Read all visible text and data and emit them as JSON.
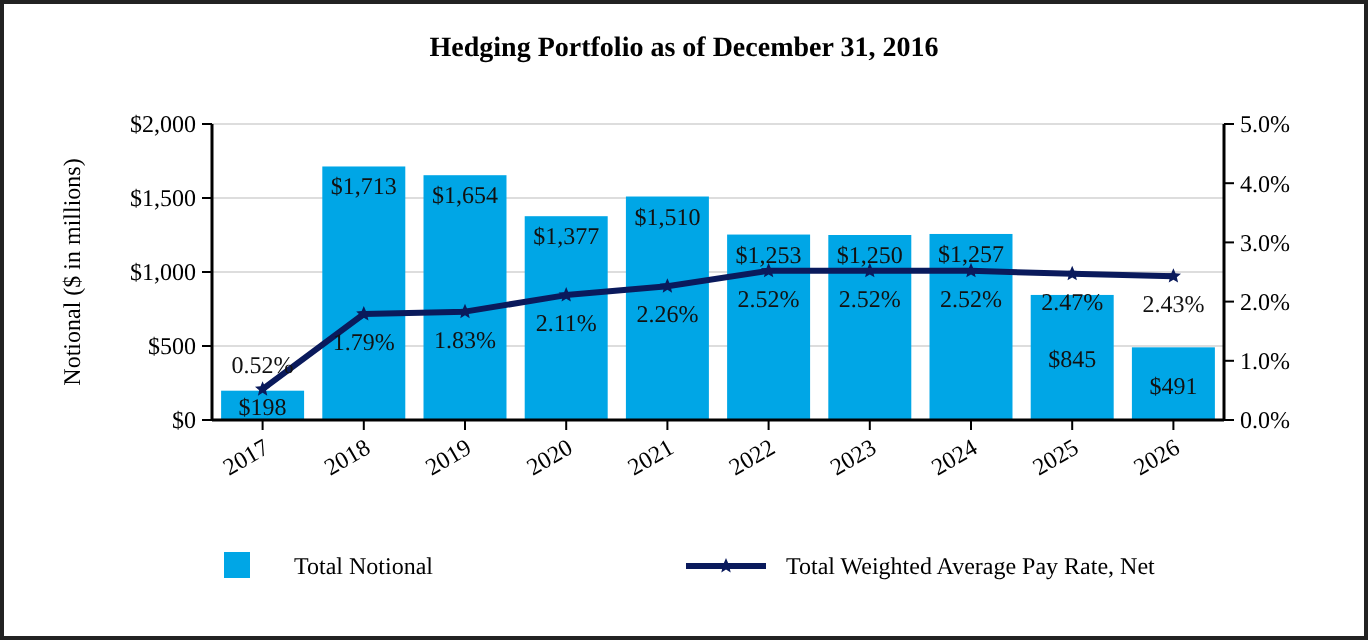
{
  "chart_data": {
    "type": "bar",
    "title": "Hedging Portfolio as of December 31, 2016",
    "ylabel": "Notional ($ in millions)",
    "categories": [
      "2017",
      "2018",
      "2019",
      "2020",
      "2021",
      "2022",
      "2023",
      "2024",
      "2025",
      "2026"
    ],
    "series": [
      {
        "name": "Total Notional",
        "color": "#00a6e6",
        "values": [
          198,
          1713,
          1654,
          1377,
          1510,
          1253,
          1250,
          1257,
          845,
          491
        ],
        "value_labels": [
          "$198",
          "$1,713",
          "$1,654",
          "$1,377",
          "$1,510",
          "$1,253",
          "$1,250",
          "$1,257",
          "$845",
          "$491"
        ]
      },
      {
        "name": "Total Weighted Average Pay Rate, Net",
        "type": "line",
        "axis": "y2",
        "color": "#0a1a5c",
        "marker": "star",
        "values": [
          0.52,
          1.79,
          1.83,
          2.11,
          2.26,
          2.52,
          2.52,
          2.52,
          2.47,
          2.43
        ],
        "value_labels": [
          "0.52%",
          "1.79%",
          "1.83%",
          "2.11%",
          "2.26%",
          "2.52%",
          "2.52%",
          "2.52%",
          "2.47%",
          "2.43%"
        ]
      }
    ],
    "ylim": [
      0,
      2000
    ],
    "yticks": [
      {
        "value": 0,
        "label": "$0"
      },
      {
        "value": 500,
        "label": "$500"
      },
      {
        "value": 1000,
        "label": "$1,000"
      },
      {
        "value": 1500,
        "label": "$1,500"
      },
      {
        "value": 2000,
        "label": "$2,000"
      }
    ],
    "y2lim": [
      0,
      5
    ],
    "y2ticks": [
      {
        "value": 0,
        "label": "0.0%"
      },
      {
        "value": 1,
        "label": "1.0%"
      },
      {
        "value": 2,
        "label": "2.0%"
      },
      {
        "value": 3,
        "label": "3.0%"
      },
      {
        "value": 4,
        "label": "4.0%"
      },
      {
        "value": 5,
        "label": "5.0%"
      }
    ],
    "grid": "y",
    "legend": "bottom"
  }
}
